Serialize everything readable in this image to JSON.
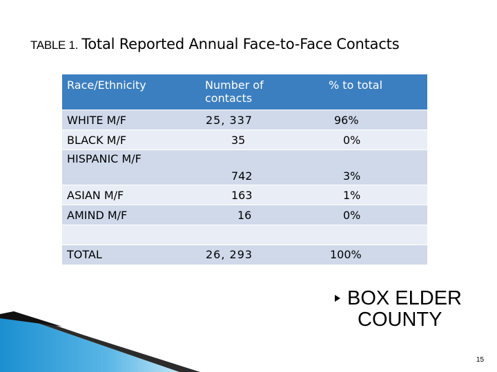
{
  "title": {
    "prefix": "TABLE 1.",
    "main": "Total Reported Annual Face-to-Face Contacts"
  },
  "table": {
    "headers": [
      "Race/Ethnicity",
      "Number of contacts",
      "% to total"
    ],
    "rows": [
      {
        "group": "WHITE M/F",
        "count": "25, 337",
        "pct": "96%"
      },
      {
        "group": "BLACK M/F",
        "count": "35",
        "pct": "0%"
      },
      {
        "group": "HISPANIC M/F",
        "count": "742",
        "pct": "3%"
      },
      {
        "group": "ASIAN M/F",
        "count": "163",
        "pct": "1%"
      },
      {
        "group": "AMIND M/F",
        "count": "16",
        "pct": "0%"
      },
      {
        "group": "",
        "count": "",
        "pct": ""
      },
      {
        "group": "TOTAL",
        "count": "26, 293",
        "pct": "100%"
      }
    ]
  },
  "county": {
    "line1": "BOX ELDER",
    "line2": "COUNTY"
  },
  "page_number": "15",
  "colors": {
    "header_bg": "#3c7fc1",
    "row_dark": "#cfd9ea",
    "row_light": "#e9eef6",
    "deco_blue": "#1b8fd0"
  },
  "icons": {
    "bullet": "triangle-right-bullet-icon"
  }
}
